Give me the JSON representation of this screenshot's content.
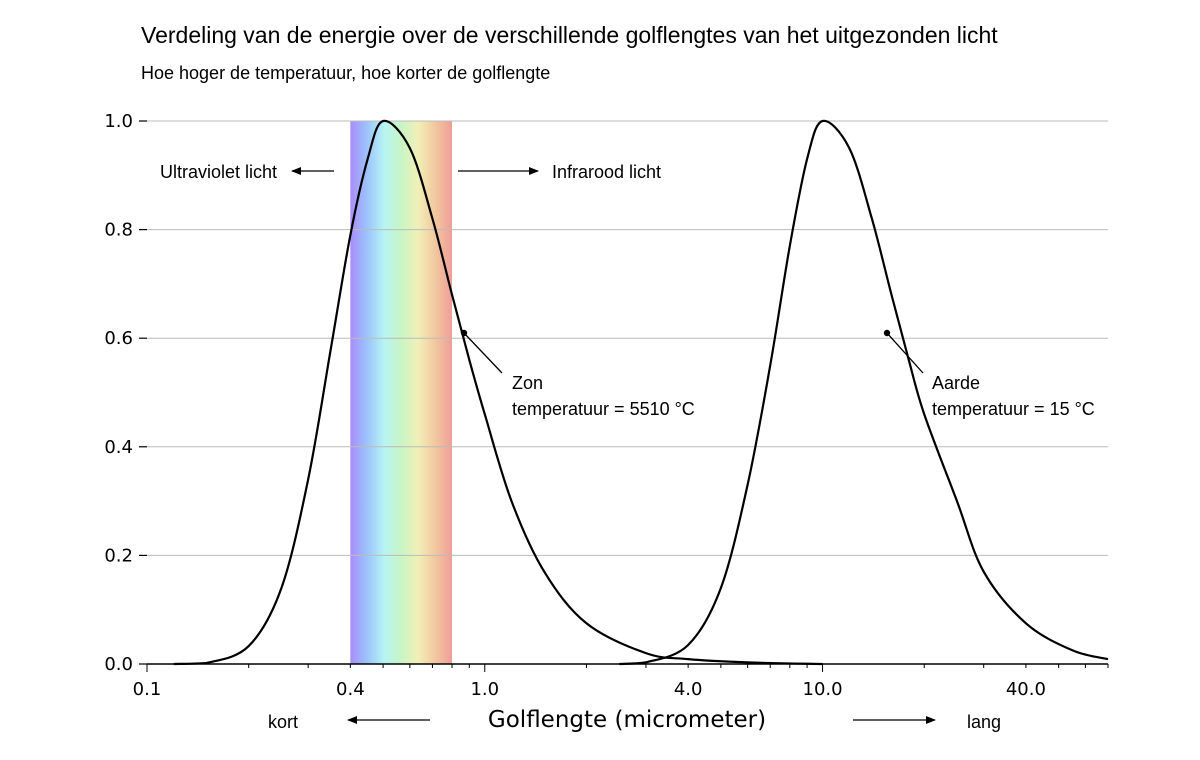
{
  "chart_data": {
    "type": "line",
    "title": "Verdeling van de energie over de verschillende golflengtes van het uitgezonden licht",
    "subtitle": "Hoe hoger de temperatuur, hoe korter de golflengte",
    "xlabel": "Golflengte (micrometer)",
    "ylabel": "",
    "x_scale": "log",
    "xlim": [
      0.1,
      70
    ],
    "ylim": [
      0,
      1.0
    ],
    "grid": "horizontal",
    "x_ticks": [
      "0.1",
      "0.4",
      "1.0",
      "4.0",
      "10.0",
      "40.0"
    ],
    "x_tick_values": [
      0.1,
      0.4,
      1.0,
      4.0,
      10.0,
      40.0
    ],
    "y_ticks": [
      "0.0",
      "0.2",
      "0.4",
      "0.6",
      "0.8",
      "1.0"
    ],
    "y_tick_values": [
      0,
      0.2,
      0.4,
      0.6,
      0.8,
      1.0
    ],
    "visible_band": {
      "from": 0.4,
      "to": 0.8
    },
    "series": [
      {
        "name": "Zon",
        "temperature_label": "temperatuur = 5510 °C",
        "peak_wavelength": 0.5,
        "x": [
          0.12,
          0.15,
          0.2,
          0.25,
          0.3,
          0.35,
          0.4,
          0.45,
          0.5,
          0.6,
          0.7,
          0.8,
          0.9,
          1.0,
          1.2,
          1.5,
          2.0,
          3.0,
          4.0,
          6.0,
          10.0
        ],
        "values": [
          0.0,
          0.002,
          0.033,
          0.14,
          0.34,
          0.58,
          0.79,
          0.93,
          1.0,
          0.95,
          0.82,
          0.68,
          0.56,
          0.46,
          0.3,
          0.17,
          0.075,
          0.02,
          0.009,
          0.003,
          0.0
        ]
      },
      {
        "name": "Aarde",
        "temperature_label": "temperatuur = 15 °C",
        "peak_wavelength": 10.0,
        "x": [
          2.5,
          3.0,
          4.0,
          5.0,
          6.0,
          7.0,
          8.0,
          9.0,
          10.0,
          12.0,
          14.0,
          16.0,
          18.0,
          20.0,
          25.0,
          30.0,
          40.0,
          55.0,
          70.0
        ],
        "values": [
          0.0,
          0.003,
          0.035,
          0.14,
          0.33,
          0.55,
          0.77,
          0.93,
          1.0,
          0.95,
          0.82,
          0.68,
          0.56,
          0.46,
          0.3,
          0.17,
          0.075,
          0.025,
          0.009
        ]
      }
    ],
    "annotations": {
      "uv": "Ultraviolet licht",
      "ir": "Infrarood licht",
      "short": "kort",
      "long": "lang"
    },
    "colors": {
      "line": "#000000",
      "grid": "#bbbbbb",
      "spectrum": [
        "#a98cfa",
        "#9cc4fb",
        "#b7f4f4",
        "#c8f5c5",
        "#f1f0b6",
        "#f2c89f",
        "#ee9e98"
      ]
    }
  }
}
